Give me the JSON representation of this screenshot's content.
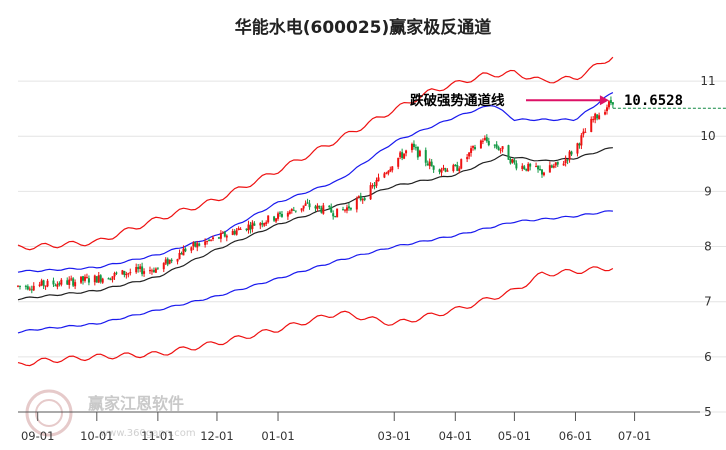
{
  "chart_data": {
    "type": "candlestick",
    "title": "华能水电(600025)赢家极反通道",
    "xlabel": "",
    "ylabel": "",
    "ylim": [
      5,
      11.6
    ],
    "yticks": [
      5,
      6,
      7,
      8,
      9,
      10,
      11
    ],
    "ytick_labels": [
      "5",
      "6",
      "7",
      "8",
      "9",
      "10",
      "11"
    ],
    "grid": true,
    "xlim": [
      "2024-08-22",
      "2025-07-20"
    ],
    "xticks": [
      "2024-09-01",
      "2024-10-01",
      "2024-11-01",
      "2024-12-01",
      "2025-01-01",
      "2025-03-01",
      "2025-04-01",
      "2025-05-01",
      "2025-06-01",
      "2025-07-01"
    ],
    "xtick_labels": [
      "09-01",
      "10-01",
      "11-01",
      "12-01",
      "01-01",
      "03-01",
      "04-01",
      "05-01",
      "06-01",
      "07-01"
    ],
    "last_price": 10.6528,
    "last_price_label": "10.6528",
    "annotation": {
      "text": "跌破强势通道线"
    },
    "anchors": [
      [
        "2024-08-22",
        7.28
      ],
      [
        "2024-09-01",
        7.3
      ],
      [
        "2024-09-15",
        7.35
      ],
      [
        "2024-10-01",
        7.42
      ],
      [
        "2024-10-20",
        7.55
      ],
      [
        "2024-11-01",
        7.6
      ],
      [
        "2024-11-15",
        7.95
      ],
      [
        "2024-12-01",
        8.15
      ],
      [
        "2024-12-15",
        8.35
      ],
      [
        "2025-01-01",
        8.55
      ],
      [
        "2025-01-15",
        8.75
      ],
      [
        "2025-02-01",
        8.6
      ],
      [
        "2025-02-15",
        8.95
      ],
      [
        "2025-03-01",
        9.55
      ],
      [
        "2025-03-10",
        9.8
      ],
      [
        "2025-03-20",
        9.45
      ],
      [
        "2025-04-01",
        9.4
      ],
      [
        "2025-04-15",
        9.95
      ],
      [
        "2025-04-25",
        9.75
      ],
      [
        "2025-05-01",
        9.5
      ],
      [
        "2025-05-15",
        9.35
      ],
      [
        "2025-05-25",
        9.5
      ],
      [
        "2025-06-01",
        9.8
      ],
      [
        "2025-06-10",
        10.3
      ],
      [
        "2025-06-20",
        10.65
      ]
    ],
    "series": [
      {
        "color": "#ee1111",
        "values": [
          [
            "2024-08-22",
            7.98
          ],
          [
            "2024-09-01",
            8.0
          ],
          [
            "2024-10-01",
            8.08
          ],
          [
            "2024-11-01",
            8.5
          ],
          [
            "2024-12-01",
            8.85
          ],
          [
            "2025-01-01",
            9.38
          ],
          [
            "2025-02-01",
            9.95
          ],
          [
            "2025-03-01",
            10.48
          ],
          [
            "2025-03-20",
            10.82
          ],
          [
            "2025-04-15",
            11.1
          ],
          [
            "2025-05-01",
            11.15
          ],
          [
            "2025-05-15",
            11.0
          ],
          [
            "2025-06-01",
            11.05
          ],
          [
            "2025-06-20",
            11.45
          ]
        ]
      },
      {
        "color": "#1a1aee",
        "values": [
          [
            "2024-08-22",
            7.55
          ],
          [
            "2024-09-01",
            7.56
          ],
          [
            "2024-10-01",
            7.62
          ],
          [
            "2024-11-01",
            7.85
          ],
          [
            "2024-12-01",
            8.2
          ],
          [
            "2025-01-01",
            8.8
          ],
          [
            "2025-02-01",
            9.2
          ],
          [
            "2025-03-01",
            9.9
          ],
          [
            "2025-04-01",
            10.35
          ],
          [
            "2025-04-20",
            10.58
          ],
          [
            "2025-05-01",
            10.3
          ],
          [
            "2025-06-01",
            10.3
          ],
          [
            "2025-06-20",
            10.8
          ]
        ]
      },
      {
        "color": "#222222",
        "values": [
          [
            "2024-08-22",
            7.05
          ],
          [
            "2024-10-01",
            7.2
          ],
          [
            "2024-11-01",
            7.45
          ],
          [
            "2024-12-01",
            7.95
          ],
          [
            "2025-01-01",
            8.4
          ],
          [
            "2025-02-01",
            8.75
          ],
          [
            "2025-03-01",
            9.1
          ],
          [
            "2025-04-01",
            9.3
          ],
          [
            "2025-04-25",
            9.65
          ],
          [
            "2025-05-15",
            9.55
          ],
          [
            "2025-06-01",
            9.6
          ],
          [
            "2025-06-20",
            9.8
          ]
        ]
      },
      {
        "color": "#1a1aee",
        "values": [
          [
            "2024-08-22",
            6.45
          ],
          [
            "2024-09-01",
            6.5
          ],
          [
            "2024-10-01",
            6.6
          ],
          [
            "2024-11-01",
            6.85
          ],
          [
            "2024-12-01",
            7.1
          ],
          [
            "2025-01-01",
            7.42
          ],
          [
            "2025-02-01",
            7.75
          ],
          [
            "2025-03-01",
            8.0
          ],
          [
            "2025-04-01",
            8.2
          ],
          [
            "2025-05-01",
            8.45
          ],
          [
            "2025-06-01",
            8.55
          ],
          [
            "2025-06-20",
            8.65
          ]
        ]
      },
      {
        "color": "#ee1111",
        "values": [
          [
            "2024-08-22",
            5.85
          ],
          [
            "2024-09-01",
            5.92
          ],
          [
            "2024-10-01",
            6.0
          ],
          [
            "2024-11-01",
            6.05
          ],
          [
            "2024-12-01",
            6.25
          ],
          [
            "2025-01-01",
            6.5
          ],
          [
            "2025-02-01",
            6.8
          ],
          [
            "2025-03-01",
            6.6
          ],
          [
            "2025-04-01",
            6.85
          ],
          [
            "2025-05-01",
            7.2
          ],
          [
            "2025-05-15",
            7.5
          ],
          [
            "2025-06-01",
            7.55
          ],
          [
            "2025-06-20",
            7.62
          ]
        ]
      }
    ]
  },
  "watermark": {
    "brand": "赢家江恩软件",
    "url": "www.360gann.com"
  }
}
